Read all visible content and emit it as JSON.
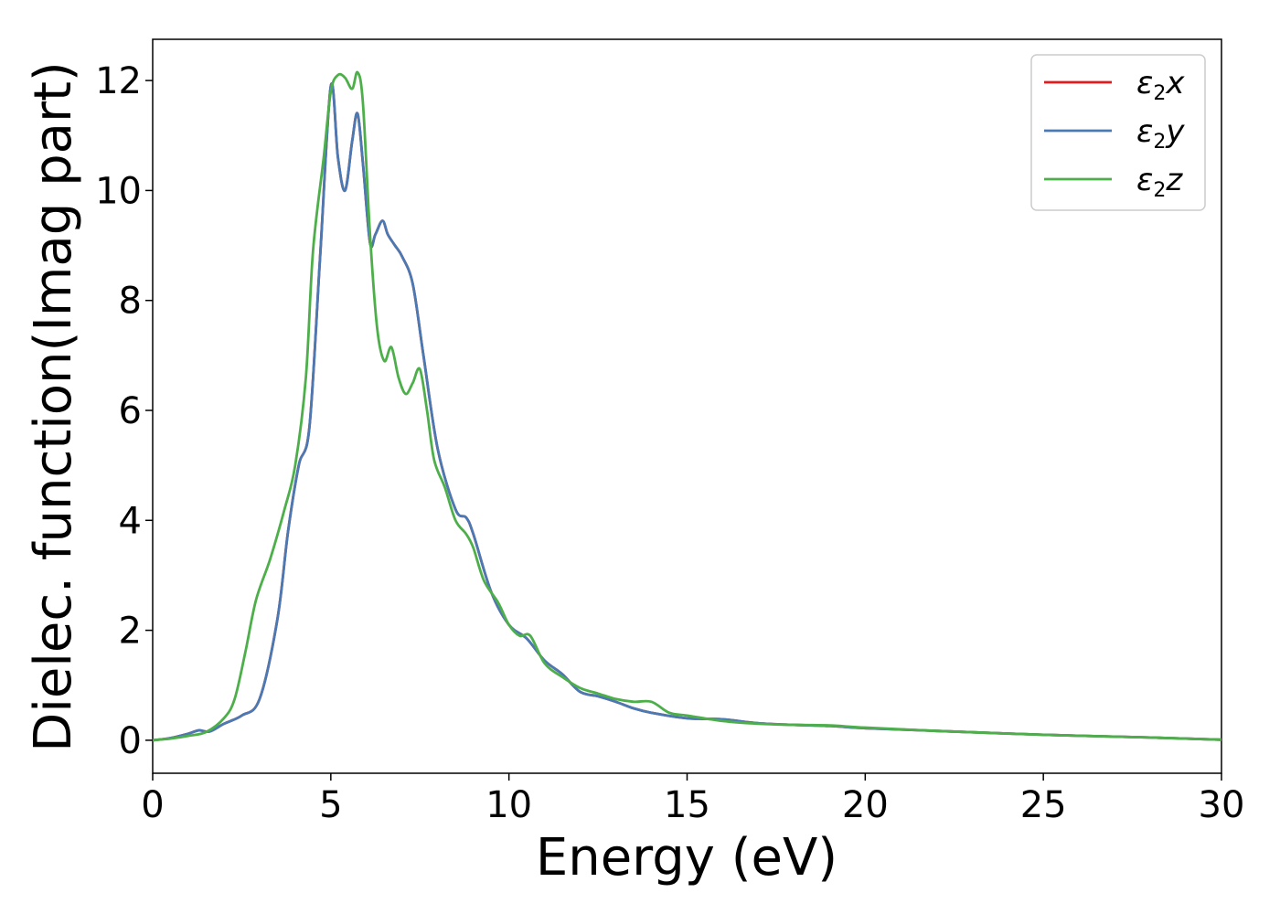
{
  "chart_data": {
    "type": "line",
    "xlabel": "Energy (eV)",
    "ylabel": "Dielec. function(Imag part)",
    "xlim": [
      0,
      30
    ],
    "ylim": [
      -0.6,
      12.75
    ],
    "xticks": [
      0,
      5,
      10,
      15,
      20,
      25,
      30
    ],
    "xtick_labels": [
      "0",
      "5",
      "10",
      "15",
      "20",
      "25",
      "30"
    ],
    "yticks": [
      0,
      2,
      4,
      6,
      8,
      10,
      12
    ],
    "ytick_labels": [
      "0",
      "2",
      "4",
      "6",
      "8",
      "10",
      "12"
    ],
    "grid": false,
    "legend_position": "top-right",
    "series": [
      {
        "name": "ε2x",
        "legend_base": "ε",
        "legend_sub": "2",
        "legend_var": "x",
        "color": "#e41a1c",
        "x": [
          0,
          0.5,
          1.0,
          1.3,
          1.6,
          2.0,
          2.5,
          3.0,
          3.5,
          3.8,
          4.1,
          4.4,
          4.7,
          5.0,
          5.2,
          5.4,
          5.6,
          5.75,
          5.9,
          6.1,
          6.25,
          6.45,
          6.6,
          6.8,
          7.0,
          7.3,
          7.6,
          8.0,
          8.5,
          8.8,
          9.0,
          9.5,
          10.0,
          10.5,
          11.0,
          11.5,
          12.0,
          12.5,
          13.0,
          13.5,
          14.0,
          15.0,
          16.0,
          17.0,
          18.0,
          19.0,
          20.0,
          22.0,
          25.0,
          28.0,
          30.0
        ],
        "y": [
          0.0,
          0.04,
          0.12,
          0.18,
          0.16,
          0.3,
          0.45,
          0.75,
          2.2,
          3.8,
          5.0,
          5.7,
          8.8,
          11.9,
          10.6,
          10.0,
          10.9,
          11.4,
          10.5,
          9.05,
          9.2,
          9.45,
          9.2,
          9.0,
          8.8,
          8.3,
          7.0,
          5.3,
          4.2,
          4.05,
          3.75,
          2.7,
          2.1,
          1.85,
          1.45,
          1.2,
          0.88,
          0.8,
          0.7,
          0.58,
          0.5,
          0.4,
          0.38,
          0.31,
          0.28,
          0.26,
          0.22,
          0.17,
          0.1,
          0.05,
          0.01
        ]
      },
      {
        "name": "ε2y",
        "legend_base": "ε",
        "legend_sub": "2",
        "legend_var": "y",
        "color": "#4a7ab4",
        "x": [
          0,
          0.5,
          1.0,
          1.3,
          1.6,
          2.0,
          2.5,
          3.0,
          3.5,
          3.8,
          4.1,
          4.4,
          4.7,
          5.0,
          5.2,
          5.4,
          5.6,
          5.75,
          5.9,
          6.1,
          6.25,
          6.45,
          6.6,
          6.8,
          7.0,
          7.3,
          7.6,
          8.0,
          8.5,
          8.8,
          9.0,
          9.5,
          10.0,
          10.5,
          11.0,
          11.5,
          12.0,
          12.5,
          13.0,
          13.5,
          14.0,
          15.0,
          16.0,
          17.0,
          18.0,
          19.0,
          20.0,
          22.0,
          25.0,
          28.0,
          30.0
        ],
        "y": [
          0.0,
          0.04,
          0.12,
          0.18,
          0.16,
          0.3,
          0.45,
          0.75,
          2.2,
          3.8,
          5.0,
          5.7,
          8.8,
          11.9,
          10.6,
          10.0,
          10.9,
          11.4,
          10.5,
          9.05,
          9.2,
          9.45,
          9.2,
          9.0,
          8.8,
          8.3,
          7.0,
          5.3,
          4.2,
          4.05,
          3.75,
          2.7,
          2.1,
          1.85,
          1.45,
          1.2,
          0.88,
          0.8,
          0.7,
          0.58,
          0.5,
          0.4,
          0.38,
          0.31,
          0.28,
          0.26,
          0.22,
          0.17,
          0.1,
          0.05,
          0.01
        ]
      },
      {
        "name": "ε2z",
        "legend_base": "ε",
        "legend_sub": "2",
        "legend_var": "z",
        "color": "#4daf4a",
        "x": [
          0,
          0.5,
          1.0,
          1.5,
          2.0,
          2.3,
          2.6,
          2.9,
          3.3,
          3.7,
          4.0,
          4.3,
          4.5,
          4.8,
          5.0,
          5.2,
          5.4,
          5.6,
          5.75,
          5.9,
          6.1,
          6.3,
          6.5,
          6.7,
          6.9,
          7.1,
          7.3,
          7.5,
          7.7,
          7.9,
          8.2,
          8.5,
          8.8,
          9.0,
          9.3,
          9.7,
          10.0,
          10.3,
          10.6,
          11.0,
          11.5,
          12.0,
          12.5,
          13.0,
          13.5,
          14.0,
          14.5,
          15.0,
          16.0,
          17.0,
          18.0,
          19.0,
          20.0,
          22.0,
          25.0,
          28.0,
          30.0
        ],
        "y": [
          0.0,
          0.03,
          0.08,
          0.15,
          0.4,
          0.75,
          1.6,
          2.55,
          3.3,
          4.2,
          5.0,
          6.6,
          8.9,
          10.6,
          11.8,
          12.1,
          12.05,
          11.85,
          12.15,
          11.6,
          9.2,
          7.5,
          6.9,
          7.15,
          6.6,
          6.3,
          6.5,
          6.75,
          6.0,
          5.1,
          4.6,
          4.0,
          3.75,
          3.5,
          2.9,
          2.5,
          2.1,
          1.9,
          1.9,
          1.4,
          1.15,
          0.95,
          0.85,
          0.75,
          0.7,
          0.7,
          0.5,
          0.45,
          0.35,
          0.3,
          0.28,
          0.27,
          0.23,
          0.17,
          0.1,
          0.05,
          0.01
        ]
      }
    ]
  }
}
